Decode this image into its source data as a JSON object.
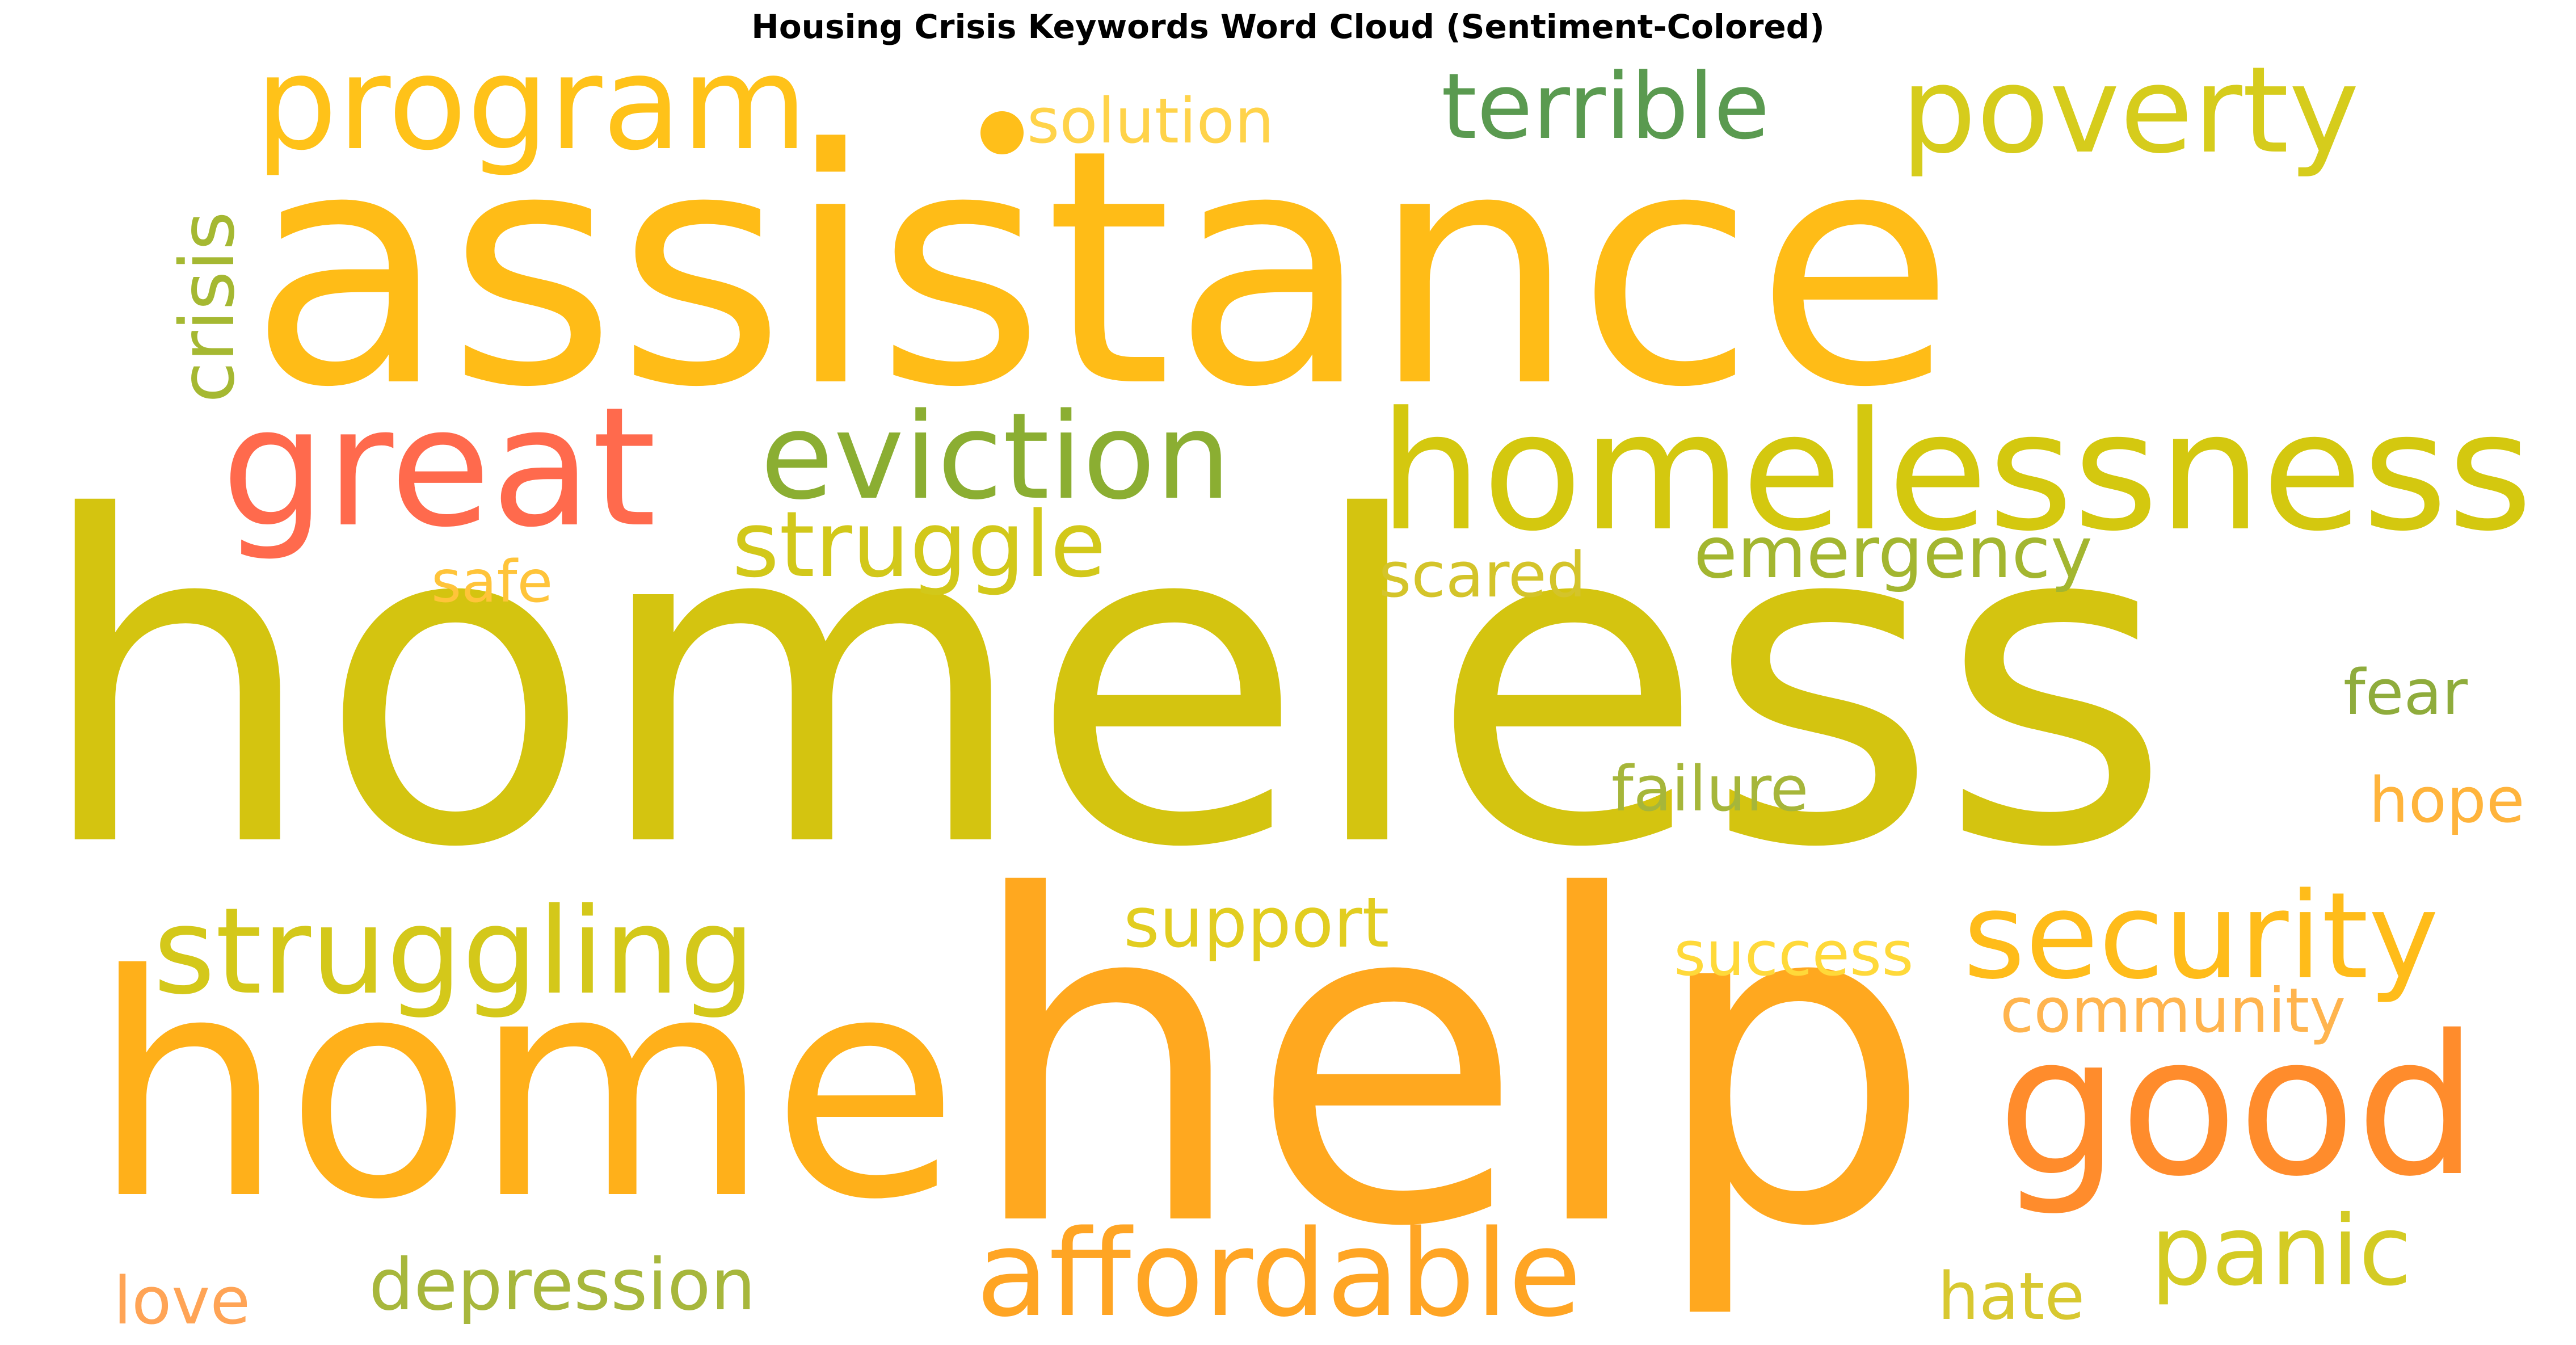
{
  "title": "Housing Crisis Keywords Word Cloud (Sentiment-Colored)",
  "words": [
    {
      "text": "homeless",
      "color": "#d4c410"
    },
    {
      "text": "assistance",
      "color": "#ffbc17"
    },
    {
      "text": "help",
      "color": "#ffa81f"
    },
    {
      "text": "home",
      "color": "#ffb01a"
    },
    {
      "text": "homelessness",
      "color": "#d4c80f"
    },
    {
      "text": "program",
      "color": "#ffc219"
    },
    {
      "text": "poverty",
      "color": "#d6cc1c"
    },
    {
      "text": "great",
      "color": "#ff6a4d"
    },
    {
      "text": "eviction",
      "color": "#8bae32"
    },
    {
      "text": "terrible",
      "color": "#5a9a50"
    },
    {
      "text": "struggle",
      "color": "#d2c81a"
    },
    {
      "text": "struggling",
      "color": "#d4c81a"
    },
    {
      "text": "good",
      "color": "#ff8c2c"
    },
    {
      "text": "security",
      "color": "#ffbc1a"
    },
    {
      "text": "affordable",
      "color": "#ffa524"
    },
    {
      "text": "crisis",
      "color": "#a5b832"
    },
    {
      "text": "solution",
      "color": "#ffd34a"
    },
    {
      "text": "emergency",
      "color": "#a3b630"
    },
    {
      "text": "safe",
      "color": "#ffc43a"
    },
    {
      "text": "scared",
      "color": "#d4c42a"
    },
    {
      "text": "fear",
      "color": "#8fac3c"
    },
    {
      "text": "failure",
      "color": "#a6b63a"
    },
    {
      "text": "hope",
      "color": "#ffb43c"
    },
    {
      "text": "support",
      "color": "#e2cd20"
    },
    {
      "text": "success",
      "color": "#ffd93a"
    },
    {
      "text": "community",
      "color": "#ffb44e"
    },
    {
      "text": "panic",
      "color": "#d4cb24"
    },
    {
      "text": "depression",
      "color": "#a7b73c"
    },
    {
      "text": "hate",
      "color": "#d8c830"
    },
    {
      "text": "love",
      "color": "#ffa456"
    }
  ]
}
